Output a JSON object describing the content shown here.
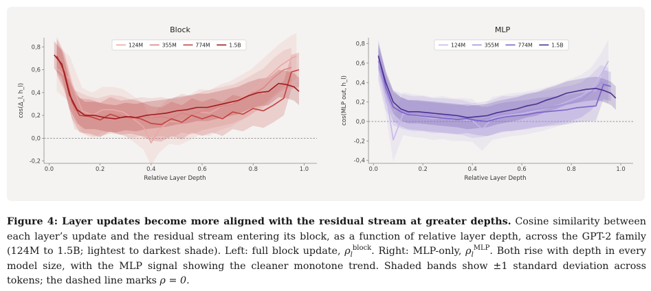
{
  "chart_data": [
    {
      "type": "line",
      "title": "Block",
      "xlabel": "Relative Layer Depth",
      "ylabel": "cos(Δ_l, h_l)",
      "xlim": [
        -0.02,
        1.05
      ],
      "ylim": [
        -0.22,
        0.88
      ],
      "xticks": [
        "0.0",
        "0.2",
        "0.4",
        "0.6",
        "0.8",
        "1.0"
      ],
      "yticks": [
        "-0,2",
        "0,0",
        "0,2",
        "0,4",
        "0,6",
        "0,8"
      ],
      "ytick_values": [
        -0.2,
        0.0,
        0.2,
        0.4,
        0.6,
        0.8
      ],
      "grid": false,
      "legend_position": "top",
      "reference_line_y": 0.0,
      "series": [
        {
          "name": "124M",
          "color": "#eaa8a6",
          "band": 0.2,
          "x": [
            0.03,
            0.08,
            0.13,
            0.17,
            0.21,
            0.25,
            0.29,
            0.33,
            0.37,
            0.4,
            0.43,
            0.47,
            0.51,
            0.55,
            0.59,
            0.63,
            0.67,
            0.71,
            0.75,
            0.79,
            0.83,
            0.87,
            0.91,
            0.95,
            0.97
          ],
          "y": [
            0.61,
            0.52,
            0.24,
            0.2,
            0.25,
            0.25,
            0.23,
            0.17,
            0.1,
            -0.04,
            0.07,
            0.15,
            0.14,
            0.18,
            0.23,
            0.22,
            0.27,
            0.3,
            0.35,
            0.4,
            0.48,
            0.56,
            0.64,
            0.7,
            0.72
          ]
        },
        {
          "name": "355M",
          "color": "#dc8684",
          "band": 0.17,
          "x": [
            0.03,
            0.06,
            0.1,
            0.15,
            0.19,
            0.24,
            0.28,
            0.32,
            0.36,
            0.4,
            0.44,
            0.48,
            0.52,
            0.56,
            0.6,
            0.64,
            0.68,
            0.72,
            0.76,
            0.8,
            0.84,
            0.88,
            0.92,
            0.95
          ],
          "y": [
            0.72,
            0.58,
            0.25,
            0.2,
            0.18,
            0.21,
            0.2,
            0.17,
            0.19,
            0.18,
            0.19,
            0.17,
            0.22,
            0.2,
            0.24,
            0.26,
            0.28,
            0.3,
            0.34,
            0.39,
            0.44,
            0.53,
            0.6,
            0.62
          ]
        },
        {
          "name": "774M",
          "color": "#c4413f",
          "band": 0.15,
          "x": [
            0.03,
            0.06,
            0.09,
            0.12,
            0.16,
            0.2,
            0.24,
            0.28,
            0.32,
            0.36,
            0.4,
            0.44,
            0.48,
            0.52,
            0.56,
            0.6,
            0.64,
            0.68,
            0.72,
            0.76,
            0.8,
            0.84,
            0.88,
            0.92,
            0.95,
            0.98
          ],
          "y": [
            0.72,
            0.58,
            0.32,
            0.2,
            0.19,
            0.16,
            0.21,
            0.18,
            0.19,
            0.17,
            0.13,
            0.12,
            0.17,
            0.14,
            0.2,
            0.17,
            0.2,
            0.17,
            0.23,
            0.21,
            0.26,
            0.24,
            0.29,
            0.35,
            0.58,
            0.6
          ]
        },
        {
          "name": "1.5B",
          "color": "#9e1a1d",
          "band": 0.12,
          "x": [
            0.02,
            0.05,
            0.08,
            0.11,
            0.14,
            0.18,
            0.22,
            0.26,
            0.3,
            0.34,
            0.38,
            0.42,
            0.46,
            0.5,
            0.54,
            0.58,
            0.62,
            0.66,
            0.7,
            0.74,
            0.78,
            0.82,
            0.86,
            0.9,
            0.93,
            0.96,
            0.98
          ],
          "y": [
            0.73,
            0.65,
            0.38,
            0.25,
            0.2,
            0.2,
            0.18,
            0.17,
            0.19,
            0.18,
            0.2,
            0.21,
            0.22,
            0.24,
            0.25,
            0.27,
            0.27,
            0.29,
            0.31,
            0.33,
            0.37,
            0.4,
            0.41,
            0.48,
            0.47,
            0.45,
            0.41
          ]
        }
      ]
    },
    {
      "type": "line",
      "title": "MLP",
      "xlabel": "Relative Layer Depth",
      "ylabel": "cos(MLP out, h_l)",
      "xlim": [
        -0.02,
        1.05
      ],
      "ylim": [
        -0.43,
        0.86
      ],
      "xticks": [
        "0.0",
        "0.2",
        "0.4",
        "0.6",
        "0.8",
        "1.0"
      ],
      "yticks": [
        "-0,4",
        "-0,2",
        "0,0",
        "0,2",
        "0,4",
        "0,6",
        "0,8"
      ],
      "ytick_values": [
        -0.4,
        -0.2,
        0.0,
        0.2,
        0.4,
        0.6,
        0.8
      ],
      "grid": false,
      "legend_position": "top",
      "reference_line_y": 0.0,
      "series": [
        {
          "name": "124M",
          "color": "#c7b8eb",
          "band": 0.22,
          "x": [
            0.02,
            0.05,
            0.08,
            0.12,
            0.16,
            0.2,
            0.24,
            0.28,
            0.32,
            0.36,
            0.4,
            0.44,
            0.48,
            0.52,
            0.56,
            0.6,
            0.64,
            0.68,
            0.72,
            0.76,
            0.8,
            0.84,
            0.88,
            0.92,
            0.95
          ],
          "y": [
            0.62,
            0.3,
            -0.19,
            0.08,
            0.06,
            0.05,
            0.03,
            0.04,
            0.02,
            0.02,
            0.01,
            -0.08,
            0.03,
            0.05,
            0.07,
            0.08,
            0.1,
            0.12,
            0.15,
            0.18,
            0.22,
            0.26,
            0.33,
            0.48,
            0.62
          ]
        },
        {
          "name": "355M",
          "color": "#a694dc",
          "band": 0.18,
          "x": [
            0.02,
            0.05,
            0.08,
            0.12,
            0.16,
            0.2,
            0.24,
            0.28,
            0.32,
            0.36,
            0.4,
            0.44,
            0.48,
            0.52,
            0.56,
            0.6,
            0.64,
            0.68,
            0.72,
            0.76,
            0.8,
            0.84,
            0.88,
            0.92,
            0.95
          ],
          "y": [
            0.62,
            0.3,
            0.14,
            0.1,
            0.08,
            0.08,
            0.06,
            0.06,
            0.05,
            0.04,
            0.01,
            0.02,
            0.04,
            0.08,
            0.08,
            0.1,
            0.12,
            0.13,
            0.15,
            0.17,
            0.19,
            0.22,
            0.3,
            0.4,
            0.37
          ]
        },
        {
          "name": "774M",
          "color": "#7c62c7",
          "band": 0.15,
          "x": [
            0.02,
            0.05,
            0.08,
            0.11,
            0.14,
            0.18,
            0.22,
            0.26,
            0.3,
            0.34,
            0.38,
            0.42,
            0.46,
            0.5,
            0.54,
            0.58,
            0.62,
            0.66,
            0.7,
            0.74,
            0.78,
            0.82,
            0.86,
            0.9,
            0.93,
            0.96
          ],
          "y": [
            0.68,
            0.35,
            0.15,
            0.1,
            0.07,
            0.06,
            0.05,
            0.04,
            0.03,
            0.02,
            0.03,
            0.01,
            0.0,
            0.03,
            0.05,
            0.06,
            0.07,
            0.09,
            0.1,
            0.11,
            0.12,
            0.14,
            0.15,
            0.16,
            0.38,
            0.36
          ]
        },
        {
          "name": "1.5B",
          "color": "#4a2f8f",
          "band": 0.12,
          "x": [
            0.02,
            0.05,
            0.08,
            0.11,
            0.14,
            0.18,
            0.22,
            0.26,
            0.3,
            0.34,
            0.38,
            0.42,
            0.46,
            0.5,
            0.54,
            0.58,
            0.62,
            0.66,
            0.7,
            0.74,
            0.78,
            0.82,
            0.86,
            0.9,
            0.93,
            0.96,
            0.98
          ],
          "y": [
            0.67,
            0.4,
            0.2,
            0.13,
            0.1,
            0.1,
            0.09,
            0.08,
            0.07,
            0.06,
            0.04,
            0.05,
            0.06,
            0.09,
            0.11,
            0.13,
            0.16,
            0.18,
            0.22,
            0.25,
            0.29,
            0.31,
            0.33,
            0.34,
            0.32,
            0.29,
            0.24
          ]
        }
      ]
    }
  ],
  "caption": {
    "figure_label": "Figure 4:",
    "bold_sentence": "Layer updates become more aligned with the residual stream at greater depths.",
    "text1": " Cosine similarity between each layer’s update and the residual stream entering its block, as a function of relative layer depth, across the GPT-2 family (124M to 1.5B; lightest to darkest shade). Left: full block update, ",
    "rho": "ρ",
    "sub_l": "l",
    "sup_block": "block",
    "text2": ". Right: MLP-only, ",
    "sup_mlp": "MLP",
    "text3": ". Both rise with depth in every model size, with the MLP signal showing the cleaner monotone trend. Shaded bands show ±1 standard deviation across tokens; the dashed line marks ",
    "rho_eq": "ρ = 0",
    "text4": "."
  }
}
